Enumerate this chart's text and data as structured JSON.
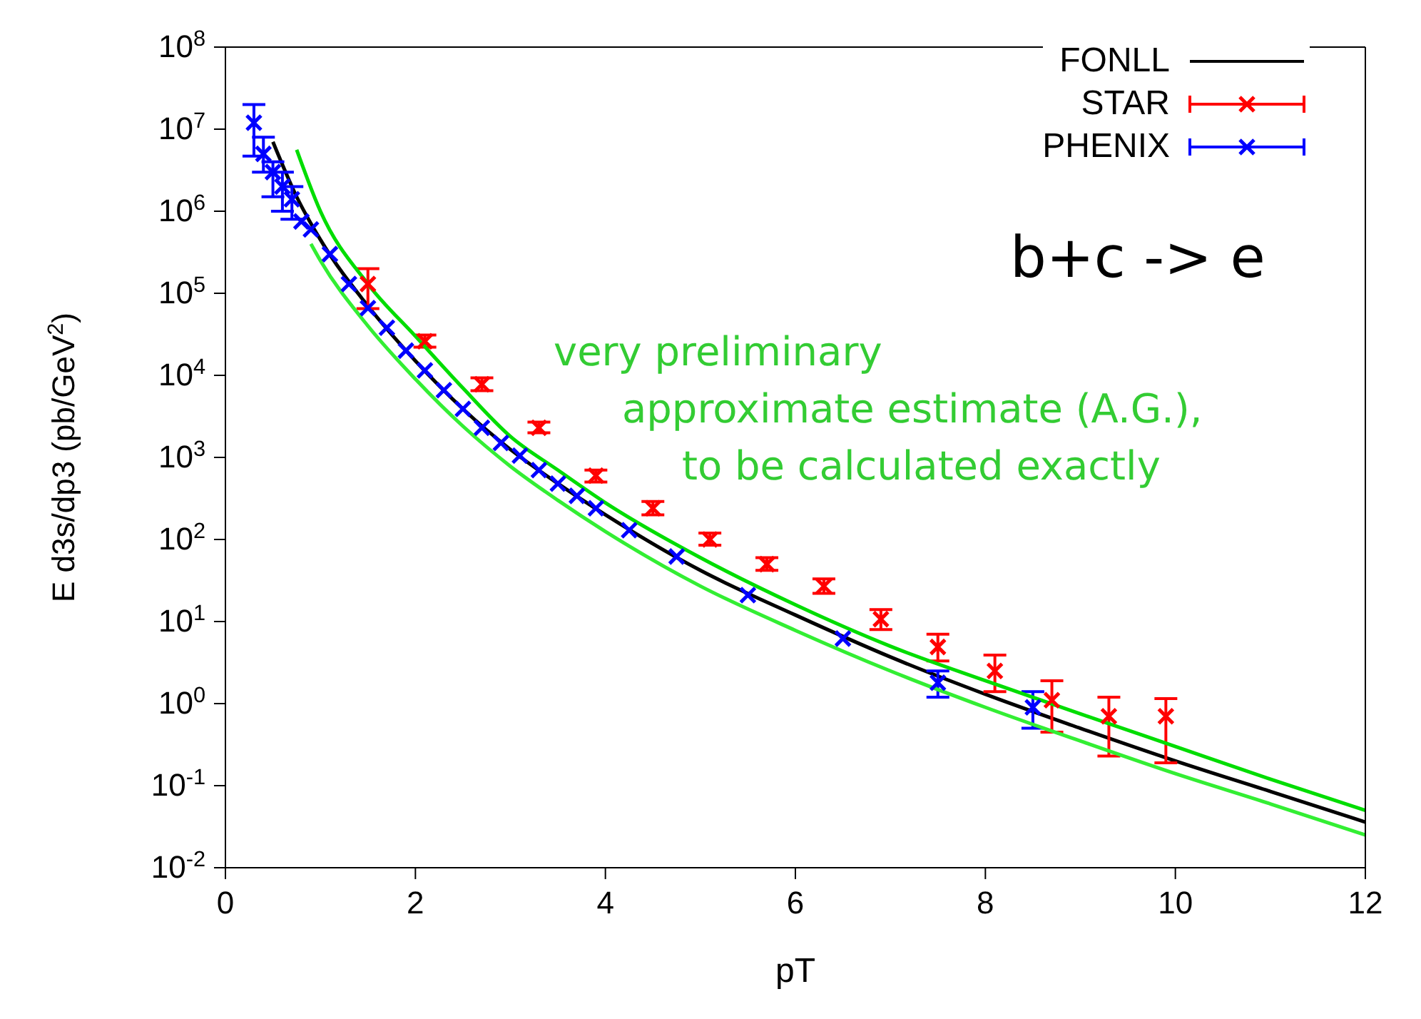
{
  "chart_data": {
    "type": "line",
    "xlabel": "pT",
    "ylabel": "E d3s/dp3 (pb/GeV$^{2}$)",
    "log": "y",
    "xlim": [
      0,
      12
    ],
    "xticks": [
      0,
      2,
      4,
      6,
      8,
      10,
      12
    ],
    "ylim": [
      0.01,
      100000000
    ],
    "yticks": [
      {
        "value": 0.01,
        "label": "10$^{-2}$"
      },
      {
        "value": 0.1,
        "label": "10$^{-1}$"
      },
      {
        "value": 1,
        "label": "10$^{0}$"
      },
      {
        "value": 10,
        "label": "10$^{1}$"
      },
      {
        "value": 100,
        "label": "10$^{2}$"
      },
      {
        "value": 1000,
        "label": "10$^{3}$"
      },
      {
        "value": 10000,
        "label": "10$^{4}$"
      },
      {
        "value": 100000,
        "label": "10$^{5}$"
      },
      {
        "value": 1000000,
        "label": "10$^{6}$"
      },
      {
        "value": 10000000,
        "label": "10$^{7}$"
      },
      {
        "value": 100000000,
        "label": "10$^{8}$"
      }
    ],
    "legend": "top right",
    "line_style": "solid",
    "annotations": [
      "b+c -> e",
      "very preliminary",
      "approximate estimate (A.G.),",
      "to be calculated exactly"
    ],
    "series": [
      {
        "name": "FONLL",
        "marker": "none",
        "color": "#000000",
        "x": [
          0.5,
          0.75,
          1,
          1.5,
          2,
          2.5,
          3,
          3.5,
          4,
          5,
          6,
          7,
          8,
          9,
          10,
          11,
          12
        ],
        "values": [
          7000000,
          1500000,
          450000,
          70000,
          15000,
          3900,
          1250,
          480,
          200,
          42,
          12,
          3.7,
          1.3,
          0.5,
          0.2,
          0.085,
          0.036
        ]
      },
      {
        "name": "STAR",
        "type": "scatter",
        "marker": "cross",
        "color": "#ff0000",
        "x": [
          1.5,
          2.1,
          2.7,
          3.3,
          3.9,
          4.5,
          5.1,
          5.7,
          6.3,
          6.9,
          7.5,
          8.1,
          8.7,
          9.3,
          9.9
        ],
        "values": [
          130000,
          26000,
          7800,
          2300,
          600,
          240,
          100,
          50,
          27,
          10.7,
          4.9,
          2.5,
          1.1,
          0.7,
          0.7
        ],
        "errors": [
          [
            65000,
            200000
          ],
          [
            22000,
            31000
          ],
          [
            6500,
            9300
          ],
          [
            2000,
            2700
          ],
          [
            500,
            700
          ],
          [
            200,
            290
          ],
          [
            85,
            120
          ],
          [
            42,
            60
          ],
          [
            22,
            33
          ],
          [
            8,
            14
          ],
          [
            3.3,
            7
          ],
          [
            1.4,
            3.9
          ],
          [
            0.45,
            1.9
          ],
          [
            0.23,
            1.2
          ],
          [
            0.19,
            1.15
          ]
        ]
      },
      {
        "name": "PHENIX",
        "type": "scatter",
        "marker": "cross",
        "color": "#0000ff",
        "x": [
          0.3,
          0.4,
          0.5,
          0.6,
          0.7,
          0.8,
          0.9,
          1.1,
          1.3,
          1.5,
          1.7,
          1.9,
          2.1,
          2.3,
          2.5,
          2.7,
          2.9,
          3.1,
          3.3,
          3.5,
          3.7,
          3.9,
          4.25,
          4.75,
          5.5,
          6.5,
          7.5,
          8.5
        ],
        "values": [
          12000000,
          5000000,
          3000000,
          2000000,
          1400000,
          750000,
          600000,
          300000,
          130000,
          66000,
          38000,
          20000,
          11500,
          6600,
          3900,
          2300,
          1500,
          1050,
          700,
          480,
          340,
          240,
          130,
          62,
          21,
          6.2,
          1.8,
          0.9
        ],
        "errors": [
          [
            4700000,
            20000000
          ],
          [
            3000000,
            8000000
          ],
          [
            1500000,
            4000000
          ],
          [
            1000000,
            3000000
          ],
          [
            800000,
            2000000
          ],
          null,
          null,
          null,
          null,
          null,
          null,
          null,
          null,
          null,
          null,
          null,
          null,
          null,
          null,
          null,
          null,
          null,
          null,
          null,
          null,
          null,
          [
            1.2,
            2.5
          ],
          [
            0.5,
            1.4
          ]
        ]
      },
      {
        "marker": "none",
        "color": "#00dd00",
        "x": [
          0.75,
          1,
          1.5,
          2,
          2.5,
          3,
          3.5,
          4,
          5,
          6,
          7,
          8,
          9,
          10,
          11,
          12
        ],
        "values": [
          5600000,
          1000000,
          130000,
          30000,
          7000,
          1800,
          700,
          280,
          60,
          16,
          5,
          1.9,
          0.75,
          0.3,
          0.12,
          0.05
        ]
      },
      {
        "marker": "none",
        "color": "#33ee33",
        "x": [
          0.9,
          1,
          1.5,
          2,
          2.5,
          3,
          3.5,
          4,
          5,
          6,
          7,
          8,
          9,
          10,
          11,
          12
        ],
        "values": [
          400000,
          250000,
          40000,
          9000,
          2400,
          780,
          300,
          125,
          27,
          7.8,
          2.5,
          0.9,
          0.35,
          0.14,
          0.06,
          0.025
        ]
      }
    ]
  }
}
